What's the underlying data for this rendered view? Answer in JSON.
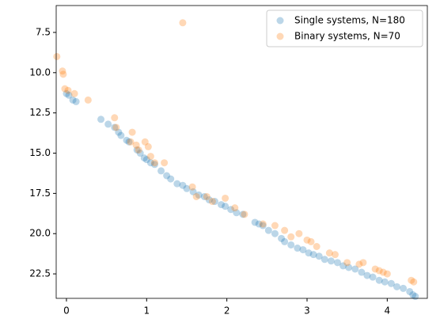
{
  "chart_data": {
    "type": "scatter",
    "xlim": [
      -0.128,
      4.5
    ],
    "xticks": [
      0,
      1,
      2,
      3,
      4
    ],
    "ylim": [
      5.83,
      24.02
    ],
    "invert_y": true,
    "yticks": [
      7.5,
      {
        "value": 10,
        "label": "10.0"
      },
      12.5,
      {
        "value": 15,
        "label": "15.0"
      },
      17.5,
      {
        "value": 20,
        "label": "20.0"
      },
      22.5
    ],
    "legend": "upper right",
    "alpha": 0.3,
    "series": [
      {
        "name": "Single systems, N=180",
        "color": "#1f77b4",
        "x": [
          0,
          0.03,
          0.08,
          0.12,
          0.43,
          0.52,
          0.6,
          0.65,
          0.68,
          0.75,
          0.78,
          0.88,
          0.92,
          0.97,
          1.0,
          1.05,
          1.1,
          1.18,
          1.25,
          1.3,
          1.38,
          1.45,
          1.5,
          1.58,
          1.65,
          1.72,
          1.78,
          1.85,
          1.93,
          1.98,
          2.05,
          2.12,
          2.2,
          2.35,
          2.4,
          2.45,
          2.52,
          2.6,
          2.68,
          2.72,
          2.8,
          2.88,
          2.95,
          3.02,
          3.08,
          3.15,
          3.22,
          3.3,
          3.38,
          3.45,
          3.52,
          3.6,
          3.68,
          3.75,
          3.82,
          3.9,
          3.97,
          4.05,
          4.12,
          4.2,
          4.28,
          4.32,
          4.35
        ],
        "values": [
          11.3,
          11.4,
          11.7,
          11.8,
          12.9,
          13.2,
          13.4,
          13.7,
          13.9,
          14.2,
          14.3,
          14.8,
          15.0,
          15.3,
          15.4,
          15.6,
          15.7,
          16.1,
          16.4,
          16.6,
          16.9,
          17.0,
          17.2,
          17.4,
          17.6,
          17.7,
          17.9,
          18.0,
          18.2,
          18.3,
          18.5,
          18.7,
          18.8,
          19.3,
          19.4,
          19.5,
          19.8,
          20.0,
          20.3,
          20.5,
          20.7,
          20.9,
          21.0,
          21.2,
          21.3,
          21.4,
          21.6,
          21.7,
          21.8,
          22.0,
          22.1,
          22.2,
          22.4,
          22.6,
          22.7,
          22.9,
          23.0,
          23.1,
          23.3,
          23.4,
          23.6,
          23.8,
          23.9
        ]
      },
      {
        "name": "Binary systems, N=70",
        "color": "#ff7f0e",
        "x": [
          -0.12,
          -0.05,
          -0.04,
          -0.02,
          0.02,
          0.1,
          0.27,
          0.6,
          0.62,
          0.8,
          0.82,
          0.87,
          0.9,
          0.98,
          1.02,
          1.05,
          1.1,
          1.22,
          1.45,
          1.57,
          1.62,
          1.75,
          1.82,
          1.98,
          2.1,
          2.22,
          2.45,
          2.6,
          2.72,
          2.8,
          2.9,
          3.0,
          3.05,
          3.12,
          3.28,
          3.35,
          3.5,
          3.65,
          3.7,
          3.85,
          3.9,
          3.95,
          4.0,
          4.3,
          4.33
        ],
        "values": [
          9.0,
          9.9,
          10.1,
          11.0,
          11.1,
          11.3,
          11.7,
          12.8,
          13.4,
          14.3,
          13.7,
          14.5,
          14.8,
          14.3,
          14.6,
          15.2,
          15.6,
          15.6,
          6.9,
          17.1,
          17.7,
          17.7,
          18.0,
          17.8,
          18.4,
          18.8,
          19.4,
          19.5,
          19.8,
          20.2,
          20.0,
          20.4,
          20.5,
          20.8,
          21.2,
          21.3,
          21.8,
          21.9,
          21.8,
          22.2,
          22.3,
          22.4,
          22.5,
          22.9,
          23.0
        ]
      }
    ]
  }
}
